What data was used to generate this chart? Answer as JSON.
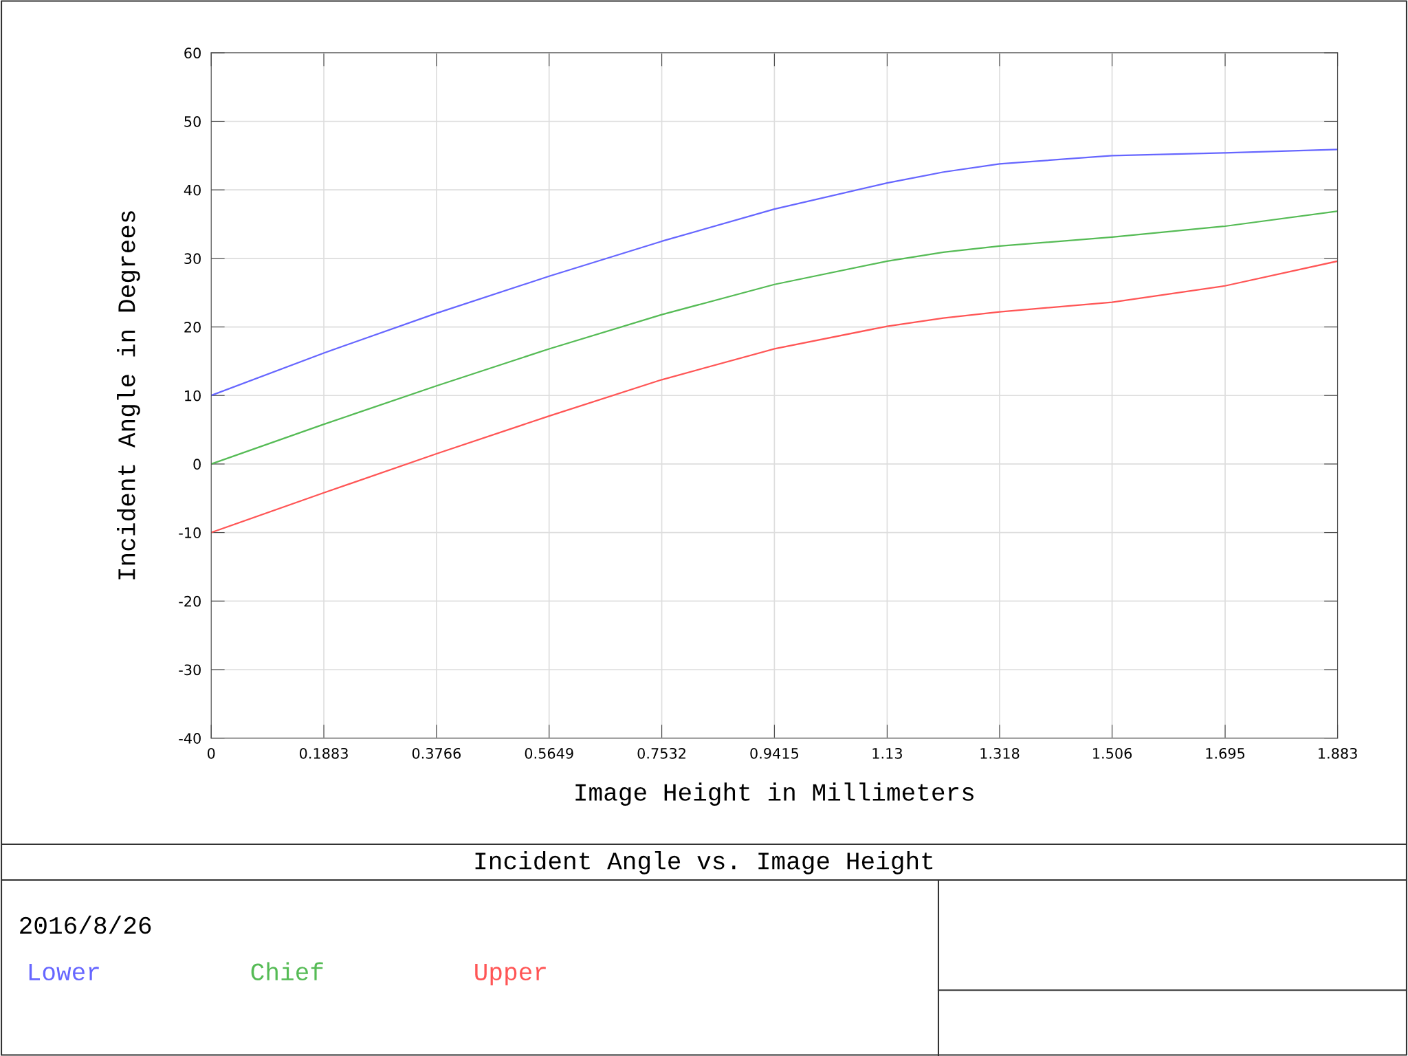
{
  "chart_data": {
    "type": "line",
    "title": "Incident Angle vs. Image Height",
    "xlabel": "Image Height in Millimeters",
    "ylabel": "Incident Angle in Degrees",
    "annotations": [
      "2016/8/26"
    ],
    "x": [
      0,
      0.1883,
      0.3766,
      0.5649,
      0.7532,
      0.9415,
      1.13,
      1.224,
      1.318,
      1.506,
      1.695,
      1.883
    ],
    "series": [
      {
        "name": "Lower",
        "color": "#6666ff",
        "values": [
          10,
          16.2,
          22,
          27.4,
          32.5,
          37.2,
          41,
          42.6,
          43.8,
          45,
          45.4,
          45.9
        ]
      },
      {
        "name": "Chief",
        "color": "#55bb55",
        "values": [
          0,
          5.8,
          11.4,
          16.8,
          21.8,
          26.2,
          29.6,
          30.9,
          31.8,
          33.1,
          34.7,
          36.9
        ]
      },
      {
        "name": "Upper",
        "color": "#ff5555",
        "values": [
          -10,
          -4.2,
          1.5,
          7,
          12.3,
          16.8,
          20.1,
          21.3,
          22.2,
          23.6,
          26,
          29.6
        ]
      }
    ],
    "xlim": [
      0,
      1.883
    ],
    "xticks": [
      0,
      0.1883,
      0.3766,
      0.5649,
      0.7532,
      0.9415,
      1.13,
      1.318,
      1.506,
      1.695,
      1.883
    ],
    "ylim": [
      -40,
      60
    ],
    "yticks": [
      -40,
      -30,
      -20,
      -10,
      0,
      10,
      20,
      30,
      40,
      50,
      60
    ],
    "grid": true,
    "legend": "bottom left",
    "marker": "none",
    "line_style": "solid"
  }
}
